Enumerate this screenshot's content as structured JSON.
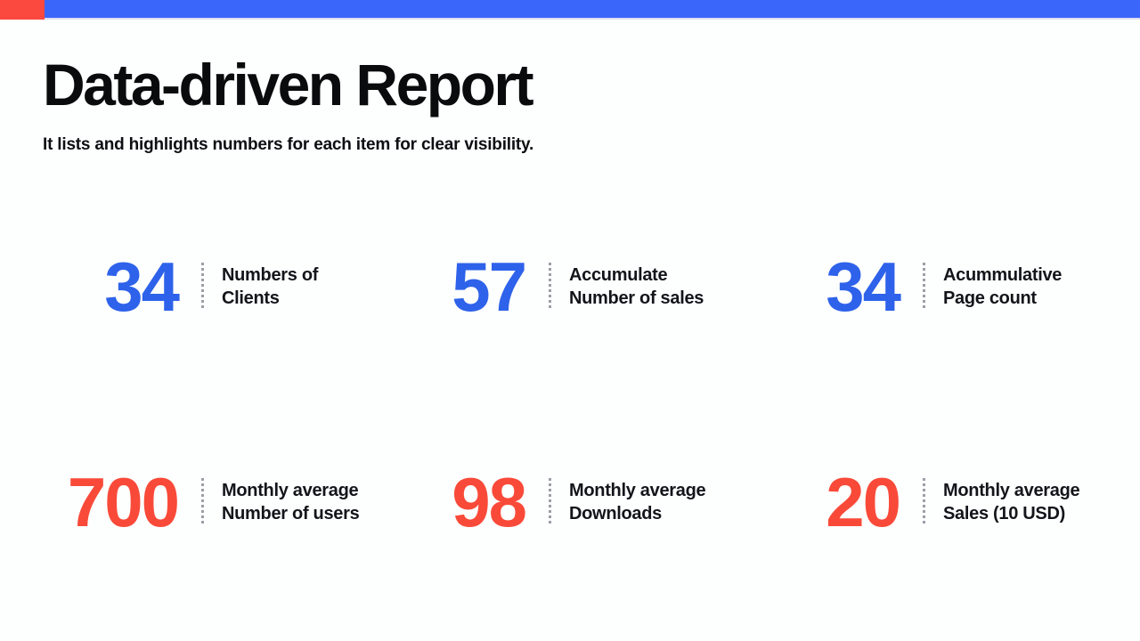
{
  "top_bar": {
    "bar_color": "#3B66FA",
    "red_block_color": "#FB4940"
  },
  "header": {
    "title": "Data-driven Report",
    "subtitle": "It lists and highlights numbers for each item for clear visibility."
  },
  "colors": {
    "stat_blue": "#2E62EA",
    "stat_red": "#F94A39",
    "divider_gray": "#9B9EA6"
  },
  "stats": [
    {
      "value": "34",
      "lines": [
        "Numbers of",
        "Clients"
      ],
      "color": "#2E62EA"
    },
    {
      "value": "57",
      "lines": [
        "Accumulate",
        "Number of sales"
      ],
      "color": "#2E62EA"
    },
    {
      "value": "34",
      "lines": [
        "Acummulative",
        "Page count"
      ],
      "color": "#2E62EA"
    },
    {
      "value": "700",
      "lines": [
        "Monthly average",
        "Number of users"
      ],
      "color": "#F94A39"
    },
    {
      "value": "98",
      "lines": [
        "Monthly average",
        "Downloads"
      ],
      "color": "#F94A39"
    },
    {
      "value": "20",
      "lines": [
        "Monthly average",
        "Sales (10 USD)"
      ],
      "color": "#F94A39"
    }
  ]
}
